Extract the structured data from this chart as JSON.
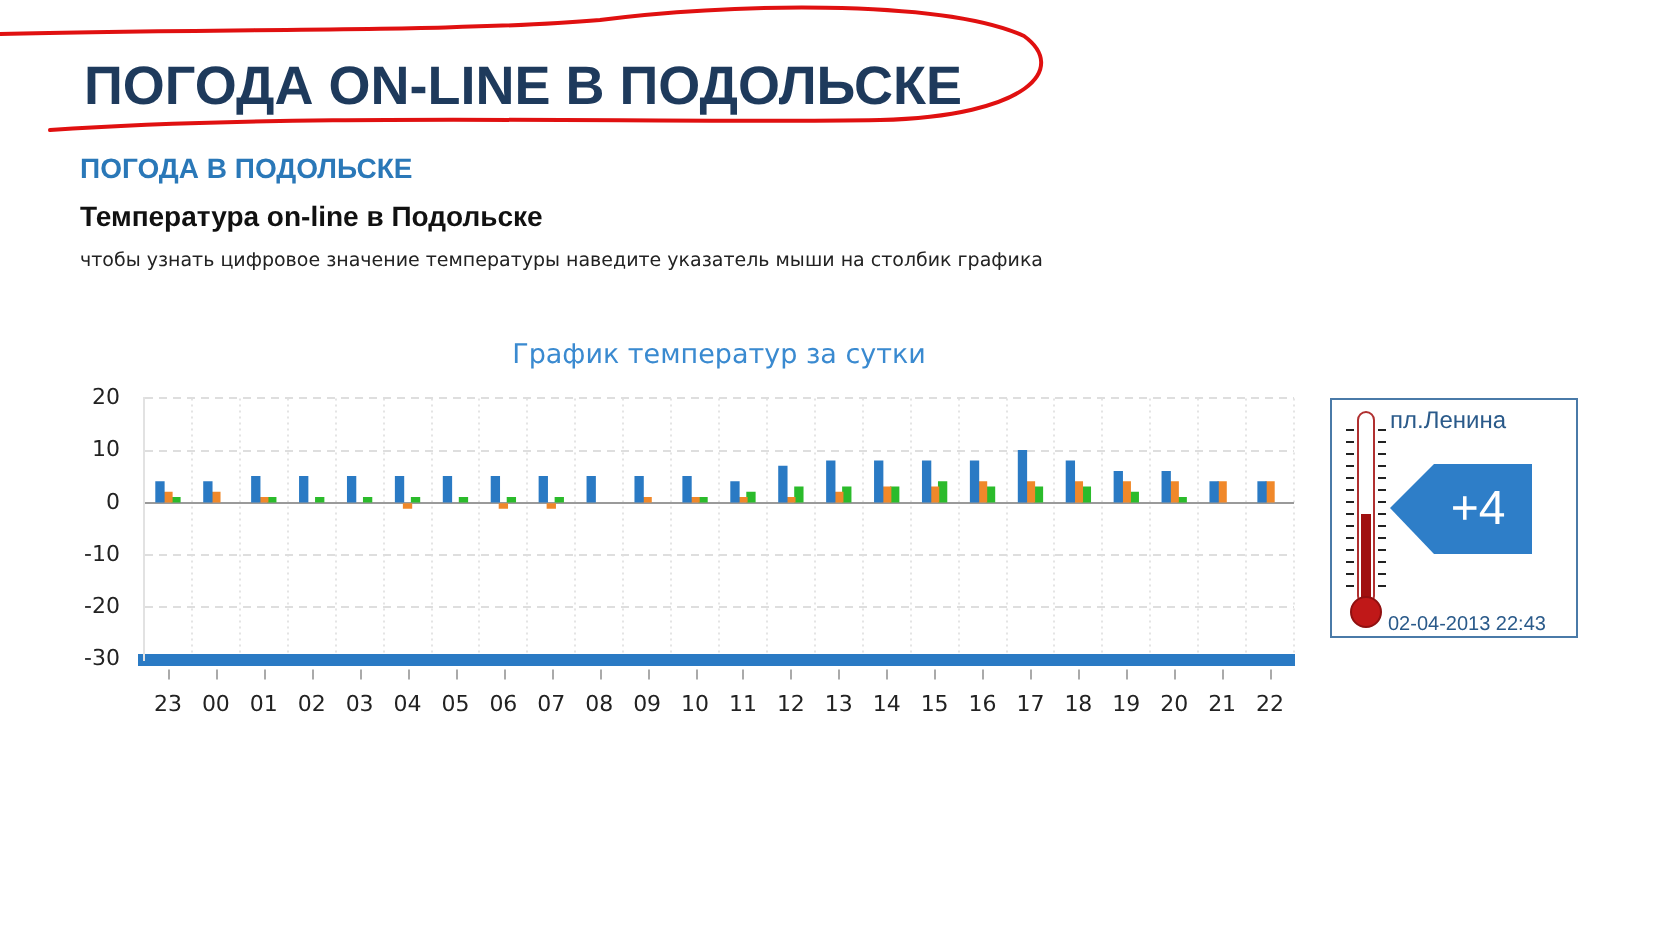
{
  "chart_data": {
    "type": "bar",
    "title": "График температур за сутки",
    "annotations": [
      "ПОГОДА ON-LINE В ПОДОЛЬСКЕ",
      "ПОГОДА В ПОДОЛЬСКЕ",
      "Температура on-line в Подольске",
      "чтобы узнать цифровое значение температуры наведите указатель мыши на столбик графика",
      "пл.Ленина",
      "+4",
      "02-04-2013 22:43"
    ],
    "categories": [
      "23",
      "00",
      "01",
      "02",
      "03",
      "04",
      "05",
      "06",
      "07",
      "08",
      "09",
      "10",
      "11",
      "12",
      "13",
      "14",
      "15",
      "16",
      "17",
      "18",
      "19",
      "20",
      "21",
      "22"
    ],
    "series": [
      {
        "color": "#2a7ac4",
        "values": [
          4,
          4,
          5,
          5,
          5,
          5,
          5,
          5,
          5,
          5,
          5,
          5,
          4,
          7,
          8,
          8,
          8,
          8,
          10,
          8,
          6,
          6,
          4,
          4
        ]
      },
      {
        "color": "#f0882a",
        "values": [
          2,
          2,
          1,
          null,
          null,
          -1,
          null,
          -1,
          -1,
          null,
          1,
          1,
          1,
          1,
          2,
          3,
          3,
          4,
          4,
          4,
          4,
          4,
          4,
          4
        ]
      },
      {
        "color": "#2bbb2b",
        "values": [
          1,
          null,
          1,
          1,
          1,
          1,
          1,
          1,
          1,
          null,
          null,
          1,
          2,
          3,
          3,
          3,
          4,
          3,
          3,
          3,
          2,
          1,
          null,
          null
        ]
      }
    ],
    "ylim": [
      -30,
      20
    ],
    "yticks": [
      -30,
      -20,
      -10,
      0,
      10,
      20
    ],
    "grid": true,
    "legend": false
  }
}
